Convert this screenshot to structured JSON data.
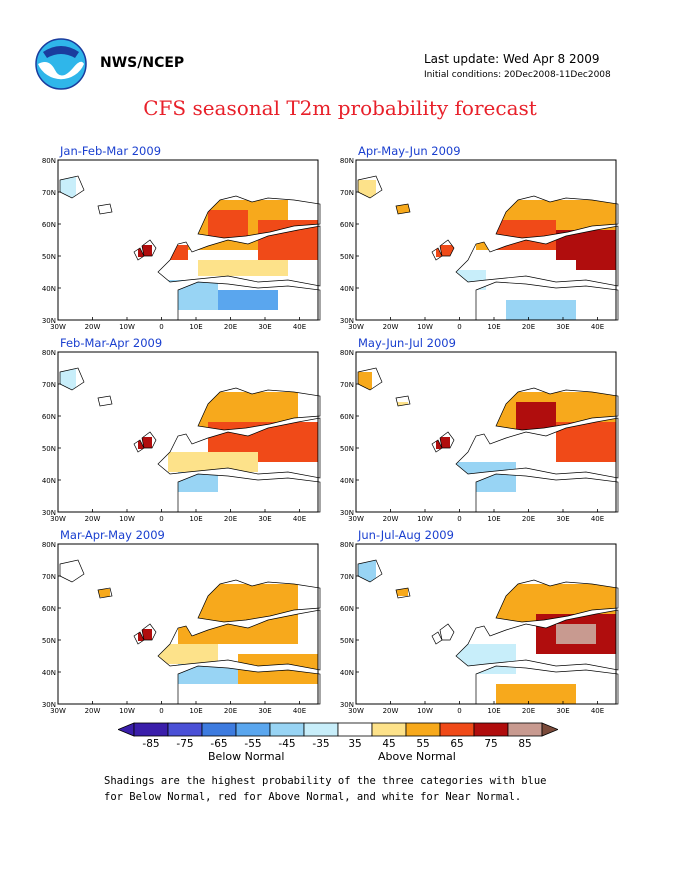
{
  "header": {
    "agency": "NWS/NCEP",
    "last_update": "Last update: Wed Apr 8 2009",
    "initial_conditions": "Initial conditions: 20Dec2008-11Dec2008",
    "title": "CFS seasonal T2m probability forecast"
  },
  "map": {
    "lat_labels": [
      "30N",
      "40N",
      "50N",
      "60N",
      "70N",
      "80N"
    ],
    "lon_labels": [
      "30W",
      "20W",
      "10W",
      "0",
      "10E",
      "20E",
      "30E",
      "40E"
    ]
  },
  "panels": [
    {
      "title": "Jan-Feb-Mar 2009"
    },
    {
      "title": "Apr-May-Jun 2009"
    },
    {
      "title": "Feb-Mar-Apr 2009"
    },
    {
      "title": "May-Jun-Jul 2009"
    },
    {
      "title": "Mar-Apr-May 2009"
    },
    {
      "title": "Jun-Jul-Aug 2009"
    }
  ],
  "colorbar": {
    "ticks": [
      "-85",
      "-75",
      "-65",
      "-55",
      "-45",
      "-35",
      "35",
      "45",
      "55",
      "65",
      "75",
      "85"
    ],
    "colors": [
      "#3a1eaa",
      "#4a50d6",
      "#3d7bdf",
      "#5aa6ee",
      "#98d4f4",
      "#c8eefa",
      "#ffffff",
      "#fde28a",
      "#f7a91c",
      "#f04a18",
      "#b00d0d",
      "#c89a90"
    ],
    "below_label": "Below Normal",
    "above_label": "Above Normal"
  },
  "note": {
    "line1": "Shadings are the highest probability of the three categories with blue",
    "line2": "for Below Normal, red for Above Normal, and white for Near Normal."
  }
}
